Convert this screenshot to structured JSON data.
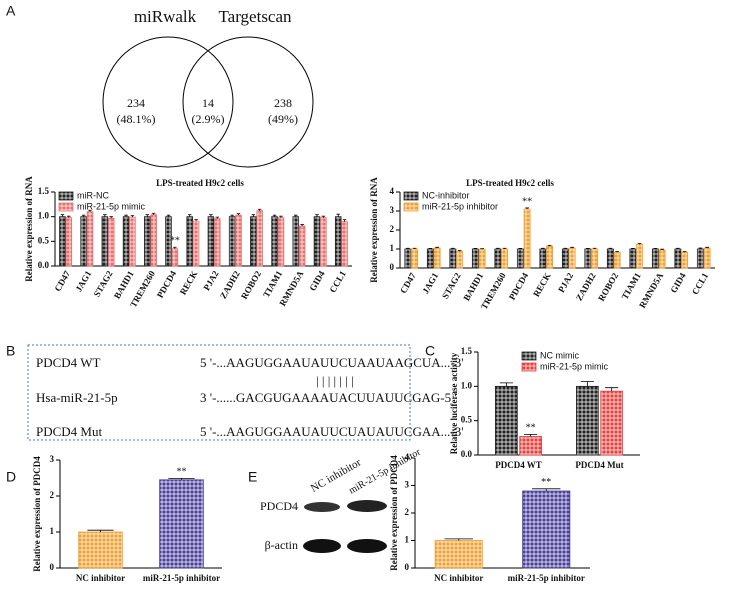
{
  "panel_labels": [
    "A",
    "B",
    "C",
    "D",
    "E"
  ],
  "venn": {
    "sets": [
      "miRwalk",
      "Targetscan"
    ],
    "regions": [
      {
        "count": "234",
        "percent": "(48.1%)"
      },
      {
        "count": "14",
        "percent": "(2.9%)"
      },
      {
        "count": "238",
        "percent": "(49%)"
      }
    ]
  },
  "sequences": {
    "rows": [
      {
        "name": "PDCD4 WT",
        "sequence": "5 '-...AAGUGGAAUAUUCUAAUAAGCUA...-3'"
      },
      {
        "name": "Hsa-miR-21-5p",
        "sequence": "3 '-......GACGUGAAAAUACUUAUUCGAG-5 '"
      },
      {
        "name": "PDCD4 Mut",
        "sequence": "5 '-...AAGUGGAAUAUUCUAUAUUCGAA...-3'"
      }
    ],
    "pairing": "| | | | | | |"
  },
  "blot": {
    "lanes": [
      "NC inhibitor",
      "miR-21-5p inhibitor"
    ],
    "bands": [
      "PDCD4",
      "β-actin"
    ]
  },
  "chart_data": [
    {
      "type": "bar",
      "title": "LPS-treated H9c2 cells",
      "y_label": "Relative expression of RNA",
      "categories": [
        "CD47",
        "JAG1",
        "STAG2",
        "BAHD1",
        "TREM260",
        "PDCD4",
        "RECK",
        "PJA2",
        "ZADH2",
        "ROBO2",
        "TIAM1",
        "RMND5A",
        "GID4",
        "CCL1"
      ],
      "series": [
        {
          "name": "miR-NC",
          "color": "#222222",
          "values": [
            1.0,
            1.0,
            1.0,
            1.0,
            1.0,
            1.0,
            1.0,
            1.0,
            1.0,
            1.0,
            1.0,
            1.0,
            1.0,
            1.0
          ],
          "errors": [
            0.04,
            0.03,
            0.04,
            0.03,
            0.04,
            0.03,
            0.04,
            0.04,
            0.03,
            0.04,
            0.03,
            0.03,
            0.04,
            0.05
          ]
        },
        {
          "name": "miR-21-5p mimic",
          "color": "#e8706f",
          "values": [
            0.98,
            1.1,
            0.97,
            0.99,
            1.04,
            0.35,
            0.91,
            0.96,
            1.03,
            1.12,
            0.98,
            0.81,
            0.98,
            0.9
          ],
          "errors": [
            0.03,
            0.03,
            0.03,
            0.03,
            0.03,
            0.03,
            0.03,
            0.03,
            0.03,
            0.03,
            0.03,
            0.03,
            0.03,
            0.04
          ],
          "annotations": [
            null,
            null,
            null,
            null,
            null,
            "**",
            null,
            null,
            null,
            null,
            null,
            null,
            null,
            null
          ]
        }
      ],
      "ylim": [
        0,
        1.5
      ],
      "yticks": [
        {
          "value": 0,
          "label": "0.0"
        },
        0.5,
        {
          "value": 1,
          "label": "1.0"
        },
        1.5
      ],
      "legend": "upper left"
    },
    {
      "type": "bar",
      "title": "LPS-treated H9c2 cells",
      "y_label": "Relative expression of RNA",
      "categories": [
        "CD47",
        "JAG1",
        "STAG2",
        "BAHD1",
        "TREM260",
        "PDCD4",
        "RECK",
        "PJA2",
        "ZADH2",
        "ROBO2",
        "TIAM1",
        "RMND5A",
        "GID4",
        "CCL1"
      ],
      "series": [
        {
          "name": "NC-inhibitor",
          "color": "#222222",
          "values": [
            1.0,
            1.0,
            1.0,
            1.0,
            1.0,
            1.0,
            1.0,
            1.0,
            1.0,
            1.0,
            1.0,
            1.0,
            1.0,
            1.0
          ],
          "errors": [
            0.04,
            0.03,
            0.04,
            0.03,
            0.04,
            0.03,
            0.04,
            0.04,
            0.03,
            0.04,
            0.03,
            0.03,
            0.04,
            0.05
          ]
        },
        {
          "name": "miR-21-5p inhibitor",
          "color": "#f0a030",
          "values": [
            1.0,
            1.05,
            0.88,
            0.98,
            1.0,
            3.1,
            1.15,
            1.05,
            1.0,
            0.83,
            1.25,
            0.95,
            0.83,
            1.05
          ],
          "errors": [
            0.04,
            0.04,
            0.04,
            0.04,
            0.04,
            0.06,
            0.04,
            0.04,
            0.04,
            0.04,
            0.04,
            0.04,
            0.04,
            0.04
          ],
          "annotations": [
            null,
            null,
            null,
            null,
            null,
            "**",
            null,
            null,
            null,
            null,
            null,
            null,
            null,
            null
          ]
        }
      ],
      "ylim": [
        0,
        4
      ],
      "yticks": [
        0,
        1,
        2,
        3,
        4
      ],
      "legend": "upper left"
    },
    {
      "type": "bar",
      "y_label": "Relative luciferase activity",
      "categories": [
        "PDCD4 WT",
        "PDCD4 Mut"
      ],
      "series": [
        {
          "name": "NC mimic",
          "color": "#222222",
          "values": [
            1.0,
            1.0
          ],
          "errors": [
            0.05,
            0.07
          ]
        },
        {
          "name": "miR-21-5p mimic",
          "color": "#e8403f",
          "values": [
            0.27,
            0.93
          ],
          "errors": [
            0.03,
            0.05
          ],
          "annotations": [
            "**",
            null
          ]
        }
      ],
      "ylim": [
        0,
        1.5
      ],
      "yticks": [
        {
          "value": 0,
          "label": "0.0"
        },
        0.5,
        {
          "value": 1,
          "label": "1.0"
        },
        1.5
      ],
      "legend": "upper right"
    },
    {
      "type": "bar",
      "y_label": "Relative expression of PDCD4",
      "categories": [
        "NC inhibitor",
        "miR-21-5p inhibitor"
      ],
      "values": [
        1.0,
        2.45
      ],
      "errors": [
        0.05,
        0.04
      ],
      "annotations": [
        null,
        "**"
      ],
      "colors": [
        "#f0a030",
        "#4a3f9a"
      ],
      "ylim": [
        0,
        3
      ],
      "yticks": [
        0,
        1,
        2,
        3
      ]
    },
    {
      "type": "bar",
      "y_label": "Relative expression of PDCD4",
      "categories": [
        "NC inhibitor",
        "miR-21-5p inhibitor"
      ],
      "values": [
        1.0,
        2.8
      ],
      "errors": [
        0.06,
        0.08
      ],
      "annotations": [
        null,
        "**"
      ],
      "colors": [
        "#f0a030",
        "#4a3f9a"
      ],
      "ylim": [
        0,
        4
      ],
      "yticks": [
        0,
        1,
        2,
        3,
        4
      ]
    }
  ]
}
